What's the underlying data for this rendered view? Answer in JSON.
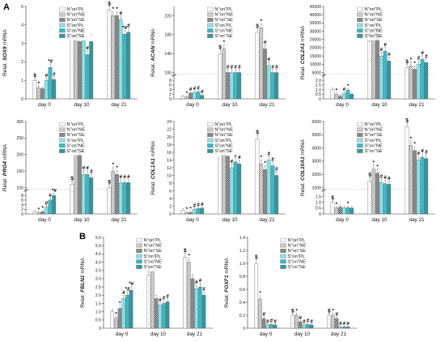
{
  "figure": {
    "panel_labels": [
      "A",
      "B"
    ],
    "series_names": [
      "N\"on\"PL",
      "N\"on\"NE",
      "N\"on\"SE",
      "S\"on\"PL",
      "S\"on\"NE",
      "S\"on\"SE"
    ],
    "series_colors": [
      "#eeeeee",
      "#b8b8b8",
      "#444444",
      "#8ee8ee",
      "#2bbcc8",
      "#1d6f7c"
    ],
    "categories": [
      "day 0",
      "day 10",
      "day 21"
    ]
  },
  "chart_data": [
    {
      "type": "bar",
      "panel": "A",
      "prefix": "Relat. ",
      "gene": "SOX9",
      "suffix": " mRNA",
      "ylim": [
        0,
        5.0
      ],
      "yticks": [
        "0",
        "1",
        "2",
        "3",
        "4",
        "5"
      ],
      "ytick_values": [
        0,
        1,
        2,
        3,
        4,
        5
      ],
      "categories": [
        "day 0",
        "day 10",
        "day 21"
      ],
      "series": [
        {
          "name": "N\"on\"PL",
          "values": [
            1.0,
            3.8,
            4.8
          ]
        },
        {
          "name": "N\"on\"NE",
          "values": [
            0.6,
            4.0,
            4.5
          ]
        },
        {
          "name": "N\"on\"SE",
          "values": [
            0.55,
            3.1,
            4.5
          ]
        },
        {
          "name": "S\"on\"PL",
          "values": [
            1.0,
            3.3,
            4.3
          ]
        },
        {
          "name": "S\"on\"NE",
          "values": [
            1.7,
            2.4,
            3.5
          ]
        },
        {
          "name": "S\"on\"SE",
          "values": [
            1.05,
            3.1,
            3.6
          ]
        }
      ],
      "marks": [
        [
          "$",
          "*",
          "",
          "#",
          "*#",
          "#"
        ],
        [
          "$",
          "*",
          "*",
          "#",
          "#",
          "#"
        ],
        [
          "$",
          "*",
          "*",
          "#",
          "*#",
          "#"
        ]
      ]
    },
    {
      "type": "bar",
      "panel": "A",
      "prefix": "Relat. ",
      "gene": "ACAN",
      "suffix": " mRNA",
      "ylim": [
        0,
        240
      ],
      "yticks": [
        "0",
        "2",
        "4",
        "6",
        "8",
        "100",
        "140",
        "180",
        "220"
      ],
      "ytick_values": [
        0,
        2,
        4,
        6,
        8,
        100,
        140,
        180,
        220
      ],
      "broken": [
        10,
        100
      ],
      "categories": [
        "day 0",
        "day 10",
        "day 21"
      ],
      "series": [
        {
          "name": "N\"on\"PL",
          "values": [
            1.0,
            140,
            185
          ]
        },
        {
          "name": "N\"on\"NE",
          "values": [
            0.8,
            150,
            195
          ]
        },
        {
          "name": "N\"on\"SE",
          "values": [
            2.5,
            90,
            150
          ]
        },
        {
          "name": "S\"on\"PL",
          "values": [
            2.8,
            75,
            115
          ]
        },
        {
          "name": "S\"on\"NE",
          "values": [
            3.0,
            60,
            90
          ]
        },
        {
          "name": "S\"on\"SE",
          "values": [
            1.5,
            60,
            80
          ]
        }
      ],
      "marks": [
        [
          "",
          "*",
          "#",
          "#",
          "#",
          "#"
        ],
        [
          "$",
          "*",
          "#",
          "#",
          "#",
          "#"
        ],
        [
          "$",
          "*",
          "#",
          "#",
          "#",
          "#"
        ]
      ]
    },
    {
      "type": "bar",
      "panel": "A",
      "prefix": "Relat. ",
      "gene": "COL2A1",
      "suffix": " mRNA",
      "ylim": [
        0,
        45000
      ],
      "yticks": [
        "0",
        "0.5",
        "1.0",
        "1.5",
        "2.0",
        "5000",
        "10000",
        "15000",
        "20000",
        "25000",
        "30000",
        "35000",
        "40000",
        "45000"
      ],
      "ytick_values": [
        0,
        0.5,
        1,
        1.5,
        2,
        5000,
        10000,
        15000,
        20000,
        25000,
        30000,
        35000,
        40000,
        45000
      ],
      "broken": [
        2.5,
        5000
      ],
      "categories": [
        "day 0",
        "day 10",
        "day 21"
      ],
      "series": [
        {
          "name": "N\"on\"PL",
          "values": [
            1.0,
            24000,
            8000
          ]
        },
        {
          "name": "N\"on\"NE",
          "values": [
            0.5,
            39000,
            9000
          ]
        },
        {
          "name": "N\"on\"SE",
          "values": [
            0.3,
            30000,
            7000
          ]
        },
        {
          "name": "S\"on\"PL",
          "values": [
            0.6,
            15000,
            10000
          ]
        },
        {
          "name": "S\"on\"NE",
          "values": [
            0.95,
            18000,
            13000
          ]
        },
        {
          "name": "S\"on\"SE",
          "values": [
            0.5,
            12000,
            11000
          ]
        }
      ],
      "marks": [
        [
          "",
          "*",
          "",
          "#",
          "*",
          ""
        ],
        [
          "$",
          "*",
          "*",
          "#",
          "#",
          "#"
        ],
        [
          "$",
          "*",
          "*",
          "#",
          "#",
          "#"
        ]
      ]
    },
    {
      "type": "bar",
      "panel": "A",
      "prefix": "Relat. ",
      "gene": "PRG4",
      "suffix": " mRNA",
      "ylim": [
        0,
        300
      ],
      "yticks": [
        "0",
        "2",
        "4",
        "6",
        "8",
        "100",
        "150",
        "200",
        "250",
        "300"
      ],
      "ytick_values": [
        0,
        2,
        4,
        6,
        8,
        100,
        150,
        200,
        250,
        300
      ],
      "broken": [
        10,
        100
      ],
      "categories": [
        "day 0",
        "day 10",
        "day 21"
      ],
      "series": [
        {
          "name": "N\"on\"PL",
          "values": [
            1.0,
            110,
            100
          ]
        },
        {
          "name": "N\"on\"NE",
          "values": [
            0.4,
            240,
            150
          ]
        },
        {
          "name": "N\"on\"SE",
          "values": [
            1.0,
            205,
            140
          ]
        },
        {
          "name": "S\"on\"PL",
          "values": [
            3.0,
            140,
            115
          ]
        },
        {
          "name": "S\"on\"NE",
          "values": [
            6.0,
            140,
            115
          ]
        },
        {
          "name": "S\"on\"SE",
          "values": [
            8.0,
            130,
            115
          ]
        }
      ],
      "marks": [
        [
          "",
          "*",
          "*",
          "#",
          "#",
          "*#"
        ],
        [
          "$",
          "*",
          "*",
          "#",
          "#",
          "#"
        ],
        [
          "$",
          "*",
          "*",
          "#",
          "#",
          "#"
        ]
      ]
    },
    {
      "type": "bar",
      "panel": "A",
      "prefix": "Relat. ",
      "gene": "COL1A1",
      "suffix": " mRNA",
      "ylim": [
        0,
        24
      ],
      "yticks": [
        "0",
        "2",
        "4",
        "6",
        "8",
        "10",
        "12",
        "14",
        "16",
        "18",
        "20",
        "22",
        "24"
      ],
      "ytick_values": [
        0,
        2,
        4,
        6,
        8,
        10,
        12,
        14,
        16,
        18,
        20,
        22,
        24
      ],
      "categories": [
        "day 0",
        "day 10",
        "day 21"
      ],
      "series": [
        {
          "name": "N\"on\"PL",
          "values": [
            1.0,
            21.0,
            19.5
          ]
        },
        {
          "name": "N\"on\"NE",
          "values": [
            0.3,
            17.0,
            13.0
          ]
        },
        {
          "name": "N\"on\"SE",
          "values": [
            0.4,
            15.0,
            11.5
          ]
        },
        {
          "name": "S\"on\"PL",
          "values": [
            1.2,
            12.0,
            14.0
          ]
        },
        {
          "name": "S\"on\"NE",
          "values": [
            1.4,
            13.5,
            12.5
          ]
        },
        {
          "name": "S\"on\"SE",
          "values": [
            1.5,
            13.0,
            10.0
          ]
        }
      ],
      "marks": [
        [
          "",
          "*",
          "*",
          "#",
          "#",
          "#"
        ],
        [
          "$",
          "*",
          "*",
          "#",
          "#",
          "#"
        ],
        [
          "$",
          "*",
          "*",
          "#",
          "#",
          "#"
        ]
      ]
    },
    {
      "type": "bar",
      "panel": "A",
      "prefix": "Relat. ",
      "gene": "COL10A1",
      "suffix": " mRNA",
      "ylim": [
        0,
        6000
      ],
      "yticks": [
        "0",
        "0.5",
        "1.0",
        "1.5",
        "1000",
        "2000",
        "3000",
        "4000",
        "5000",
        "6000"
      ],
      "ytick_values": [
        0,
        0.5,
        1,
        1.5,
        1000,
        2000,
        3000,
        4000,
        5000,
        6000
      ],
      "broken": [
        2,
        1000
      ],
      "categories": [
        "day 0",
        "day 10",
        "day 21"
      ],
      "series": [
        {
          "name": "N\"on\"PL",
          "values": [
            1.0,
            1500,
            5600
          ]
        },
        {
          "name": "N\"on\"NE",
          "values": [
            0.5,
            2400,
            4200
          ]
        },
        {
          "name": "N\"on\"SE",
          "values": [
            0.6,
            2100,
            3800
          ]
        },
        {
          "name": "S\"on\"PL",
          "values": [
            0.55,
            1400,
            3100
          ]
        },
        {
          "name": "S\"on\"NE",
          "values": [
            0.55,
            1300,
            3300
          ]
        },
        {
          "name": "S\"on\"SE",
          "values": [
            0.5,
            1250,
            3200
          ]
        }
      ],
      "marks": [
        [
          "$",
          "*",
          "",
          "",
          "*",
          ""
        ],
        [
          "$",
          "*",
          "*",
          "#",
          "#",
          "#"
        ],
        [
          "$",
          "*",
          "*",
          "#",
          "#",
          "#"
        ]
      ]
    },
    {
      "type": "bar",
      "panel": "B",
      "prefix": "Relat. ",
      "gene": "FBLN1",
      "suffix": " mRNA",
      "ylim": [
        0,
        5.5
      ],
      "yticks": [
        "0",
        "0.5",
        "1.0",
        "1.5",
        "2.0",
        "2.5",
        "3.0",
        "3.5",
        "4.0",
        "4.5",
        "5.0",
        "5.5"
      ],
      "ytick_values": [
        0,
        0.5,
        1,
        1.5,
        2,
        2.5,
        3,
        3.5,
        4,
        4.5,
        5,
        5.5
      ],
      "categories": [
        "day 0",
        "day 10",
        "day 21"
      ],
      "series": [
        {
          "name": "N\"on\"PL",
          "values": [
            1.0,
            3.2,
            4.3
          ]
        },
        {
          "name": "N\"on\"NE",
          "values": [
            0.6,
            3.5,
            4.0
          ]
        },
        {
          "name": "N\"on\"SE",
          "values": [
            1.2,
            1.8,
            3.0
          ]
        },
        {
          "name": "S\"on\"PL",
          "values": [
            1.8,
            1.4,
            2.4
          ]
        },
        {
          "name": "S\"on\"NE",
          "values": [
            2.0,
            1.5,
            2.5
          ]
        },
        {
          "name": "S\"on\"SE",
          "values": [
            2.3,
            1.6,
            2.0
          ]
        }
      ],
      "marks": [
        [
          "",
          "*",
          "*",
          "#",
          "*#",
          "*#"
        ],
        [
          "$",
          "*",
          "",
          "#",
          "#",
          "#"
        ],
        [
          "$",
          "*",
          "",
          "#",
          "#",
          "#"
        ]
      ]
    },
    {
      "type": "bar",
      "panel": "B",
      "prefix": "Relat. ",
      "gene": "FOXF1",
      "suffix": " mRNA",
      "ylim": [
        0,
        1.4
      ],
      "yticks": [
        "0",
        "0.2",
        "0.4",
        "0.6",
        "0.8",
        "1.0",
        "1.2",
        "1.4"
      ],
      "ytick_values": [
        0,
        0.2,
        0.4,
        0.6,
        0.8,
        1.0,
        1.2,
        1.4
      ],
      "categories": [
        "day 0",
        "day 10",
        "day 21"
      ],
      "series": [
        {
          "name": "N\"on\"PL",
          "values": [
            1.0,
            0.2,
            0.2
          ]
        },
        {
          "name": "N\"on\"NE",
          "values": [
            0.45,
            0.2,
            0.2
          ]
        },
        {
          "name": "N\"on\"SE",
          "values": [
            0.15,
            0.1,
            0.15
          ]
        },
        {
          "name": "S\"on\"PL",
          "values": [
            0.05,
            0.05,
            0.02
          ]
        },
        {
          "name": "S\"on\"NE",
          "values": [
            0.06,
            0.06,
            0.02
          ]
        },
        {
          "name": "S\"on\"SE",
          "values": [
            0.05,
            0.05,
            0.02
          ]
        }
      ],
      "marks": [
        [
          "$",
          "*",
          "#",
          "#",
          "#",
          "#"
        ],
        [
          "$",
          "*",
          "#",
          "#",
          "#",
          "#"
        ],
        [
          "$",
          "*",
          "#",
          "#",
          "#",
          "#"
        ]
      ]
    }
  ]
}
